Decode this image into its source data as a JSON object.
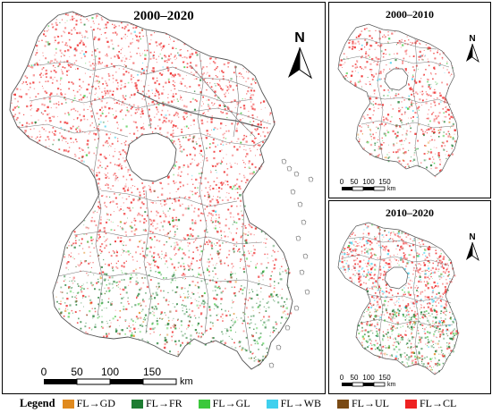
{
  "panels": {
    "main": {
      "title": "2000–2020"
    },
    "top": {
      "title": "2000–2010"
    },
    "bottom": {
      "title": "2010–2020"
    }
  },
  "north": {
    "letter": "N"
  },
  "scalebar": {
    "main": {
      "ticks": [
        "0",
        "50",
        "100",
        "150"
      ],
      "unit": "km"
    },
    "small": {
      "ticks": [
        "0",
        "50",
        "100",
        "150"
      ],
      "unit": "km"
    }
  },
  "legend": {
    "title": "Legend",
    "items": [
      {
        "label": "FL→GD",
        "color": "#e08a1e"
      },
      {
        "label": "FL→FR",
        "color": "#1e7d32"
      },
      {
        "label": "FL→GL",
        "color": "#3cc83c"
      },
      {
        "label": "FL→WB",
        "color": "#3fd0ee"
      },
      {
        "label": "FL→UL",
        "color": "#7a4a14"
      },
      {
        "label": "FL→CL",
        "color": "#ee2222"
      }
    ]
  }
}
